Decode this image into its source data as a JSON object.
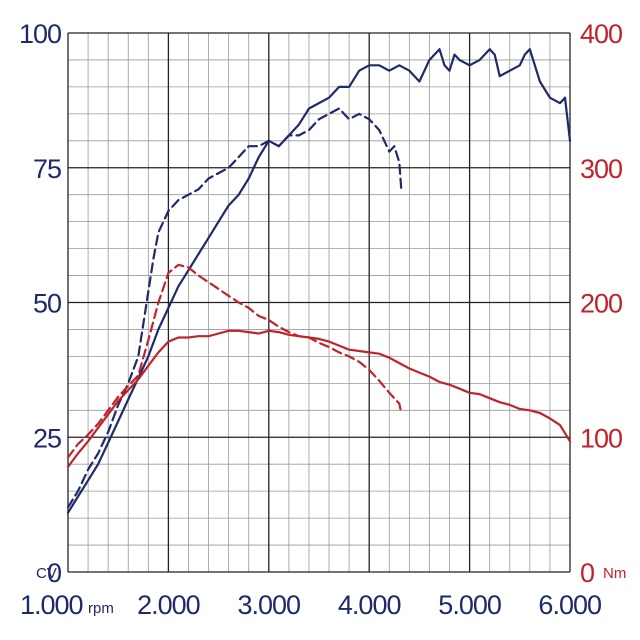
{
  "chart_data": {
    "type": "line",
    "title": "",
    "xlim": [
      1000,
      6000
    ],
    "x_ticks": [
      "1.000",
      "2.000",
      "3.000",
      "4.000",
      "5.000",
      "6.000"
    ],
    "x_unit": "rpm",
    "y_left": {
      "lim": [
        0,
        100
      ],
      "ticks": [
        "0",
        "25",
        "50",
        "75",
        "100"
      ],
      "unit": "CV",
      "color": "#1f2a6b"
    },
    "y_right": {
      "lim": [
        0,
        400
      ],
      "ticks": [
        "0",
        "100",
        "200",
        "300",
        "400"
      ],
      "unit": "Nm",
      "color": "#c0232b"
    },
    "grid": true,
    "series": [
      {
        "axis": "left",
        "style": "solid",
        "color": "#1f2a6b",
        "x": [
          1000,
          1100,
          1200,
          1300,
          1400,
          1500,
          1600,
          1700,
          1800,
          1900,
          2000,
          2100,
          2200,
          2300,
          2400,
          2500,
          2600,
          2700,
          2800,
          2900,
          3000,
          3100,
          3200,
          3300,
          3400,
          3500,
          3600,
          3700,
          3800,
          3900,
          4000,
          4100,
          4200,
          4300,
          4400,
          4500,
          4600,
          4700,
          4750,
          4800,
          4850,
          4900,
          5000,
          5100,
          5200,
          5250,
          5300,
          5400,
          5500,
          5550,
          5600,
          5700,
          5800,
          5900,
          5950,
          6000
        ],
        "values": [
          11,
          14,
          17,
          20,
          24,
          28,
          32,
          36,
          40,
          45,
          49,
          53,
          56,
          59,
          62,
          65,
          68,
          70,
          73,
          77,
          80,
          79,
          81,
          83,
          86,
          87,
          88,
          90,
          90,
          93,
          94,
          94,
          93,
          94,
          93,
          91,
          95,
          97,
          94,
          93,
          96,
          95,
          94,
          95,
          97,
          96,
          92,
          93,
          94,
          96,
          97,
          91,
          88,
          87,
          88,
          80
        ]
      },
      {
        "axis": "left",
        "style": "dashed",
        "color": "#1f2a6b",
        "x": [
          1000,
          1100,
          1200,
          1300,
          1400,
          1500,
          1600,
          1700,
          1800,
          1850,
          1900,
          2000,
          2100,
          2200,
          2300,
          2400,
          2500,
          2600,
          2700,
          2800,
          2900,
          3000,
          3100,
          3200,
          3300,
          3400,
          3500,
          3600,
          3700,
          3800,
          3900,
          4000,
          4100,
          4200,
          4250,
          4300,
          4320
        ],
        "values": [
          12,
          15,
          19,
          22,
          26,
          31,
          35,
          40,
          52,
          58,
          63,
          67,
          69,
          70,
          71,
          73,
          74,
          75,
          77,
          79,
          79,
          80,
          79,
          81,
          81,
          82,
          84,
          85,
          86,
          84,
          85,
          84,
          82,
          78,
          79,
          76,
          71
        ]
      },
      {
        "axis": "right",
        "style": "solid",
        "color": "#c0232b",
        "x": [
          1000,
          1100,
          1200,
          1300,
          1400,
          1500,
          1600,
          1700,
          1800,
          1900,
          2000,
          2100,
          2200,
          2300,
          2400,
          2500,
          2600,
          2700,
          2800,
          2900,
          3000,
          3100,
          3200,
          3300,
          3400,
          3500,
          3600,
          3700,
          3800,
          3900,
          4000,
          4100,
          4200,
          4300,
          4400,
          4500,
          4600,
          4700,
          4800,
          4900,
          5000,
          5100,
          5200,
          5300,
          5400,
          5500,
          5600,
          5700,
          5800,
          5900,
          6000
        ],
        "values": [
          78,
          88,
          97,
          107,
          117,
          127,
          135,
          143,
          153,
          163,
          171,
          174,
          174,
          175,
          175,
          177,
          179,
          179,
          178,
          177,
          179,
          178,
          176,
          175,
          174,
          173,
          171,
          168,
          165,
          164,
          163,
          162,
          159,
          155,
          151,
          148,
          145,
          141,
          139,
          136,
          133,
          132,
          129,
          126,
          124,
          121,
          120,
          118,
          114,
          109,
          97
        ]
      },
      {
        "axis": "right",
        "style": "dashed",
        "color": "#c0232b",
        "x": [
          1000,
          1100,
          1200,
          1300,
          1400,
          1500,
          1600,
          1700,
          1800,
          1900,
          2000,
          2100,
          2200,
          2300,
          2400,
          2500,
          2600,
          2700,
          2800,
          2900,
          3000,
          3100,
          3200,
          3300,
          3400,
          3500,
          3600,
          3700,
          3800,
          3900,
          4000,
          4100,
          4200,
          4300,
          4320
        ],
        "values": [
          85,
          95,
          102,
          110,
          120,
          130,
          138,
          146,
          172,
          200,
          222,
          228,
          226,
          220,
          215,
          210,
          205,
          200,
          196,
          190,
          187,
          182,
          178,
          175,
          174,
          170,
          167,
          163,
          160,
          156,
          150,
          142,
          133,
          125,
          118
        ]
      }
    ]
  }
}
